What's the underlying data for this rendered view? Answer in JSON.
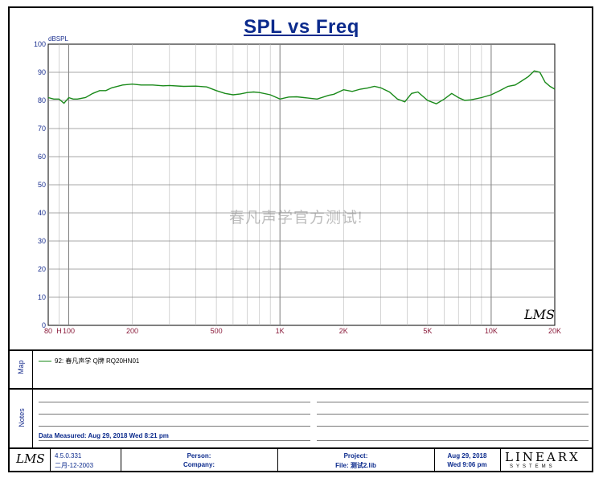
{
  "chart_data": {
    "type": "line",
    "title": "SPL vs Freq",
    "ylabel": "dBSPL",
    "xscale": "log",
    "xlim": [
      80,
      20000
    ],
    "ylim": [
      0,
      100
    ],
    "grid": true,
    "y_ticks": [
      "0",
      "10",
      "20",
      "30",
      "40",
      "50",
      "60",
      "70",
      "80",
      "90",
      "100"
    ],
    "x_ticks": [
      {
        "value": 80,
        "label": "80"
      },
      {
        "value": 90,
        "label": "H"
      },
      {
        "value": 100,
        "label": "100"
      },
      {
        "value": 200,
        "label": "200"
      },
      {
        "value": 500,
        "label": "500"
      },
      {
        "value": 1000,
        "label": "1K"
      },
      {
        "value": 2000,
        "label": "2K"
      },
      {
        "value": 5000,
        "label": "5K"
      },
      {
        "value": 10000,
        "label": "10K"
      },
      {
        "value": 20000,
        "label": "20K"
      }
    ],
    "series": [
      {
        "name": "92: 春凡声学 Q牌 RQ20HN01",
        "color": "#1a8a1a",
        "x": [
          80,
          85,
          90,
          95,
          100,
          105,
          110,
          120,
          130,
          140,
          150,
          160,
          180,
          200,
          220,
          250,
          280,
          300,
          350,
          400,
          450,
          500,
          550,
          600,
          650,
          700,
          750,
          800,
          900,
          1000,
          1100,
          1200,
          1300,
          1500,
          1700,
          1800,
          2000,
          2200,
          2400,
          2600,
          2800,
          3000,
          3300,
          3600,
          3900,
          4200,
          4500,
          5000,
          5500,
          6000,
          6500,
          7000,
          7500,
          8000,
          9000,
          10000,
          11000,
          12000,
          13000,
          14000,
          15000,
          16000,
          17000,
          18000,
          19000,
          20000
        ],
        "y": [
          81,
          80.5,
          80.5,
          79,
          81,
          80.5,
          80.5,
          81,
          82.5,
          83.5,
          83.5,
          84.5,
          85.5,
          85.8,
          85.5,
          85.5,
          85.2,
          85.3,
          85,
          85.1,
          84.8,
          83.5,
          82.5,
          82,
          82.3,
          82.8,
          83,
          82.8,
          82,
          80.5,
          81.2,
          81.3,
          81,
          80.5,
          81.8,
          82.2,
          83.8,
          83.2,
          84,
          84.4,
          85,
          84.5,
          83,
          80.5,
          79.5,
          82.5,
          83,
          80,
          78.8,
          80.5,
          82.5,
          81,
          80,
          80.2,
          81,
          82,
          83.5,
          85,
          85.5,
          87,
          88.5,
          90.5,
          90,
          86.5,
          85,
          84
        ]
      }
    ],
    "watermark": "春凡声学官方测试!"
  },
  "map": {
    "label": "Map"
  },
  "notes": {
    "label": "Notes",
    "data_measured": "Data Measured: Aug 29, 2018  Wed  8:21 pm"
  },
  "footer": {
    "version": "4.5.0.331",
    "version_date": "二月-12-2003",
    "person_label": "Person:",
    "company_label": "Company:",
    "project_label": "Project:",
    "file_label": "File: 测试2.lib",
    "date": "Aug 29, 2018",
    "time": "Wed  9:06 pm",
    "logo_lms": "LMS",
    "logo_linearx": "LINEARX",
    "logo_systems": "SYSTEMS"
  },
  "plot_signature": "LMS"
}
